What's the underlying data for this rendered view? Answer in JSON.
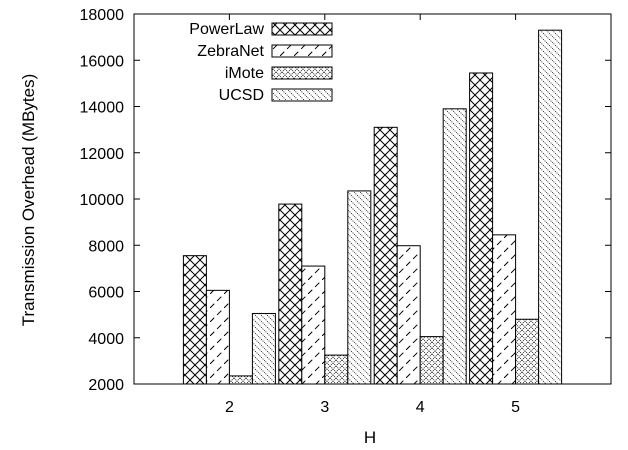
{
  "chart_data": {
    "type": "bar",
    "xlabel": "H",
    "ylabel": "Transmission Overhead (MBytes)",
    "categories": [
      "2",
      "3",
      "4",
      "5"
    ],
    "ylim": [
      2000,
      18000
    ],
    "yticks": [
      "2000",
      "4000",
      "6000",
      "8000",
      "10000",
      "12000",
      "14000",
      "16000",
      "18000"
    ],
    "legend_position": "top-left",
    "grid": false,
    "series": [
      {
        "name": "PowerLaw",
        "values": [
          7550,
          9780,
          13100,
          15450
        ],
        "pattern": "crosshatch"
      },
      {
        "name": "ZebraNet",
        "values": [
          6050,
          7100,
          7980,
          8450
        ],
        "pattern": "dashed-diagonal"
      },
      {
        "name": "iMote",
        "values": [
          2350,
          3250,
          4050,
          4800
        ],
        "pattern": "dotted-crosshatch"
      },
      {
        "name": "UCSD",
        "values": [
          5050,
          10350,
          13900,
          17300
        ],
        "pattern": "dotted-diagonal"
      }
    ]
  }
}
